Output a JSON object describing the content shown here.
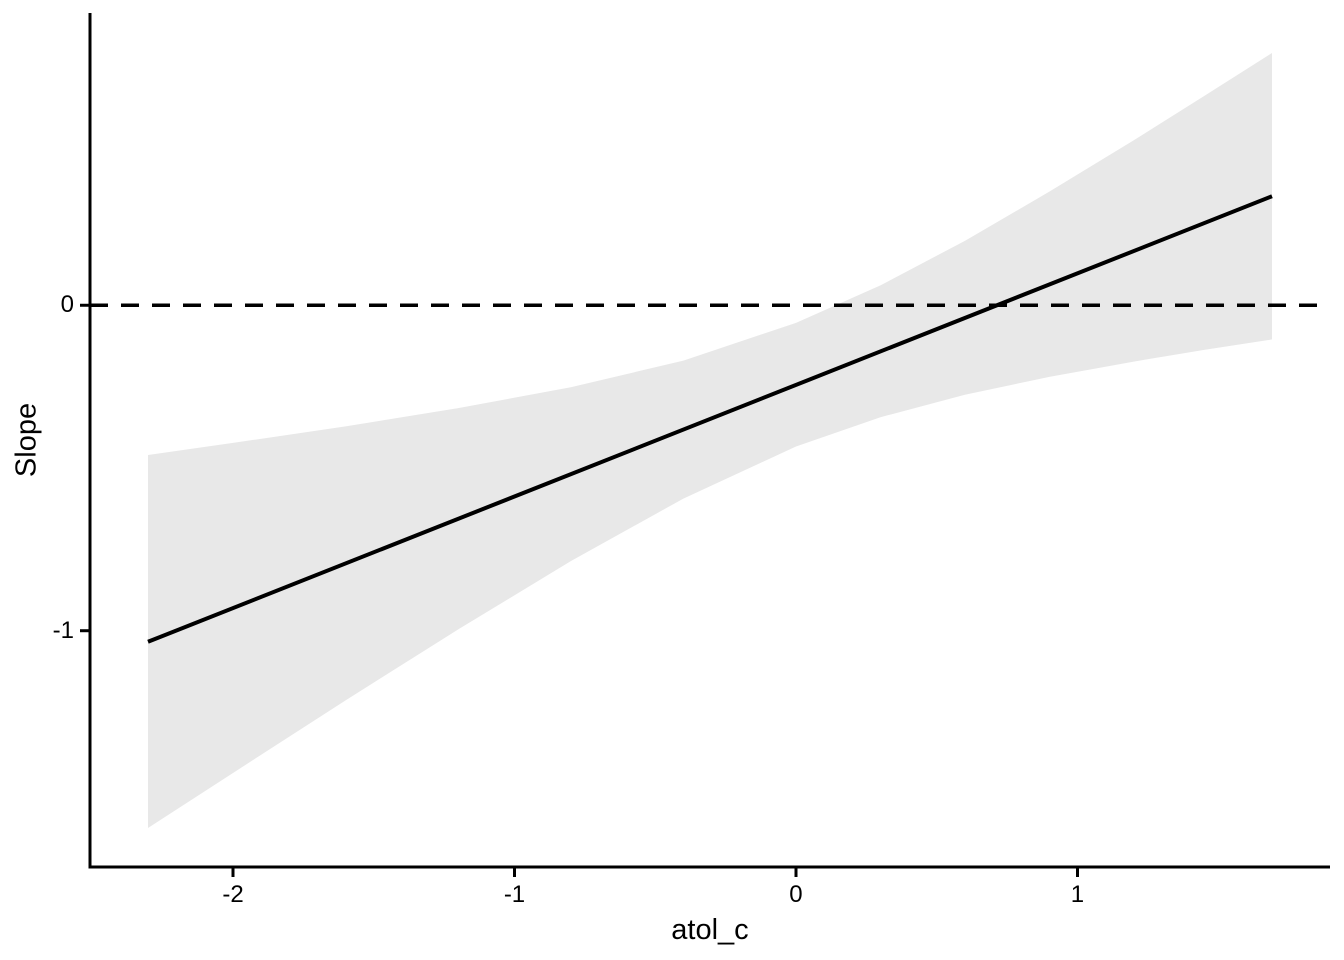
{
  "figure": {
    "background": "#FFFFFF"
  },
  "chart_data": {
    "type": "line",
    "title": "",
    "xlabel": "atol_c",
    "ylabel": "Slope",
    "x_ticks": [
      -2,
      -1,
      0,
      1
    ],
    "y_ticks": [
      0,
      -1
    ],
    "xlim": [
      -2.508,
      1.897
    ],
    "ylim": [
      -1.726,
      0.898
    ],
    "grid": "off",
    "legend": "none",
    "reference_line": {
      "y": 0,
      "style": "dashed"
    },
    "regression_line": {
      "slope": 0.343,
      "intercept": -0.244,
      "x": [
        -2.302,
        1.691
      ],
      "y": [
        -1.034,
        0.335
      ]
    },
    "ribbon": {
      "x": [
        -2.302,
        -2.0,
        -1.6,
        -1.2,
        -0.8,
        -0.4,
        0.0,
        0.3,
        0.6,
        0.9,
        1.2,
        1.45,
        1.691
      ],
      "ymin": [
        -1.606,
        -1.437,
        -1.214,
        -0.996,
        -0.786,
        -0.594,
        -0.434,
        -0.344,
        -0.275,
        -0.22,
        -0.173,
        -0.137,
        -0.105
      ],
      "ymax": [
        -0.46,
        -0.423,
        -0.372,
        -0.316,
        -0.252,
        -0.17,
        -0.054,
        0.061,
        0.198,
        0.349,
        0.507,
        0.643,
        0.775
      ]
    },
    "colors": {
      "line": "#000000",
      "ribbon": "#E8E8E8",
      "axis": "#000000",
      "text": "#000000"
    }
  }
}
